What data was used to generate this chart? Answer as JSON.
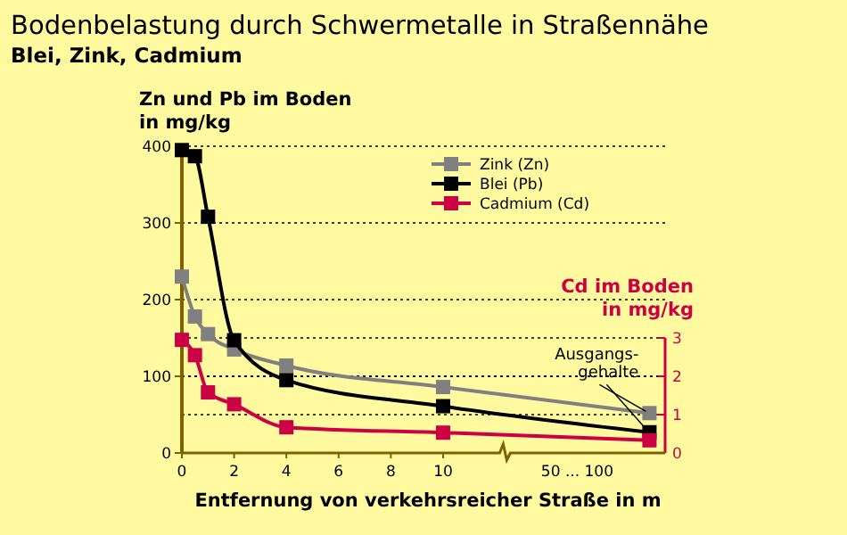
{
  "chart_data": {
    "type": "line",
    "title": "Bodenbelastung durch Schwermetalle in Straßennähe",
    "subtitle": "Blei, Zink, Cadmium",
    "xlabel": "Entfernung von verkehrsreicher Straße in m",
    "ylabel": "Zn und Pb im Boden\nin mg/kg",
    "y2label": "Cd im Boden\nin mg/kg",
    "x": [
      0,
      0.5,
      1,
      2,
      4,
      10,
      17.9
    ],
    "xlim": [
      0,
      18.5
    ],
    "xticks": [
      0,
      2,
      4,
      6,
      8,
      10
    ],
    "ylim": [
      0,
      400
    ],
    "yticks": [
      0,
      100,
      200,
      300,
      400
    ],
    "y2lim": [
      0,
      3
    ],
    "y2ticks": [
      0,
      1,
      2,
      3
    ],
    "series": [
      {
        "name": "Zink (Zn)",
        "color": "#808080",
        "values": [
          230,
          178,
          155,
          135,
          114,
          86,
          52
        ]
      },
      {
        "name": "Blei (Pb)",
        "color": "#000000",
        "values": [
          395,
          387,
          308,
          147,
          95,
          61,
          27
        ]
      },
      {
        "name": "Cadmium (Cd)",
        "color": "#cc0044",
        "axis": "y2",
        "values": [
          2.95,
          2.55,
          1.58,
          1.27,
          0.67,
          0.53,
          0.33
        ]
      }
    ],
    "annotations": [
      "50 ... 100",
      "Ausgangs-\ngehalte"
    ],
    "grid": true,
    "legend": "top right",
    "marker": "square",
    "line_style": "solid"
  }
}
